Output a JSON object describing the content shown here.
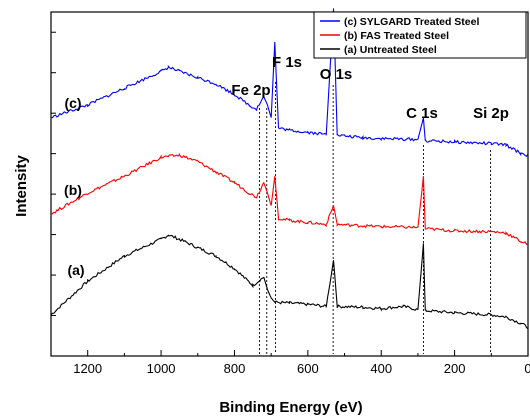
{
  "chart_data": {
    "type": "line",
    "xlabel": "Binding Energy (eV)",
    "ylabel": "Intensity",
    "xlim": [
      1300,
      0
    ],
    "x_reversed": true,
    "xticks": [
      "1200",
      "1000",
      "800",
      "600",
      "400",
      "200",
      "0"
    ],
    "xtick_values": [
      1200,
      1000,
      800,
      600,
      400,
      200,
      0
    ],
    "legend_position": "top-right",
    "grid": false,
    "y_tick_labels_shown": false,
    "series": [
      {
        "name": "(c) SYLGARD Treated Steel",
        "label": "(c)",
        "color": "#0000ff",
        "offset": 2,
        "points": [
          [
            1300,
            120
          ],
          [
            1200,
            150
          ],
          [
            1100,
            190
          ],
          [
            1000,
            230
          ],
          [
            980,
            240
          ],
          [
            950,
            230
          ],
          [
            900,
            215
          ],
          [
            850,
            200
          ],
          [
            800,
            175
          ],
          [
            760,
            150
          ],
          [
            740,
            140
          ],
          [
            720,
            170
          ],
          [
            710,
            150
          ],
          [
            700,
            120
          ],
          [
            690,
            300
          ],
          [
            680,
            95
          ],
          [
            650,
            90
          ],
          [
            600,
            85
          ],
          [
            550,
            80
          ],
          [
            530,
            380
          ],
          [
            520,
            78
          ],
          [
            450,
            72
          ],
          [
            400,
            70
          ],
          [
            300,
            68
          ],
          [
            285,
            120
          ],
          [
            280,
            65
          ],
          [
            200,
            62
          ],
          [
            100,
            58
          ],
          [
            60,
            55
          ],
          [
            20,
            35
          ],
          [
            0,
            30
          ]
        ]
      },
      {
        "name": "(b) FAS Treated Steel",
        "label": "(b)",
        "color": "#ff0000",
        "offset": 1,
        "points": [
          [
            1300,
            100
          ],
          [
            1200,
            150
          ],
          [
            1100,
            190
          ],
          [
            1000,
            235
          ],
          [
            950,
            240
          ],
          [
            900,
            225
          ],
          [
            850,
            200
          ],
          [
            800,
            175
          ],
          [
            760,
            150
          ],
          [
            740,
            140
          ],
          [
            720,
            175
          ],
          [
            710,
            150
          ],
          [
            700,
            120
          ],
          [
            690,
            190
          ],
          [
            680,
            90
          ],
          [
            650,
            85
          ],
          [
            600,
            80
          ],
          [
            550,
            75
          ],
          [
            530,
            120
          ],
          [
            520,
            75
          ],
          [
            450,
            72
          ],
          [
            400,
            70
          ],
          [
            300,
            68
          ],
          [
            285,
            190
          ],
          [
            280,
            65
          ],
          [
            200,
            60
          ],
          [
            100,
            58
          ],
          [
            60,
            55
          ],
          [
            20,
            35
          ],
          [
            0,
            28
          ]
        ]
      },
      {
        "name": "(a) Untreated Steel",
        "label": "(a)",
        "color": "#000000",
        "offset": 0,
        "points": [
          [
            1300,
            60
          ],
          [
            1200,
            140
          ],
          [
            1100,
            200
          ],
          [
            1000,
            240
          ],
          [
            980,
            250
          ],
          [
            950,
            240
          ],
          [
            900,
            220
          ],
          [
            850,
            200
          ],
          [
            800,
            170
          ],
          [
            750,
            130
          ],
          [
            720,
            150
          ],
          [
            710,
            120
          ],
          [
            700,
            100
          ],
          [
            690,
            90
          ],
          [
            650,
            88
          ],
          [
            600,
            85
          ],
          [
            550,
            80
          ],
          [
            530,
            190
          ],
          [
            520,
            80
          ],
          [
            450,
            78
          ],
          [
            400,
            75
          ],
          [
            340,
            80
          ],
          [
            300,
            72
          ],
          [
            285,
            230
          ],
          [
            280,
            70
          ],
          [
            200,
            65
          ],
          [
            100,
            60
          ],
          [
            60,
            55
          ],
          [
            20,
            40
          ],
          [
            0,
            30
          ]
        ]
      }
    ],
    "annotations": [
      {
        "text": "Fe 2p",
        "x": 720
      },
      {
        "text": "F 1s",
        "x": 688
      },
      {
        "text": "O 1s",
        "x": 531
      },
      {
        "text": "C 1s",
        "x": 285
      },
      {
        "text": "Si 2p",
        "x": 102
      }
    ]
  }
}
